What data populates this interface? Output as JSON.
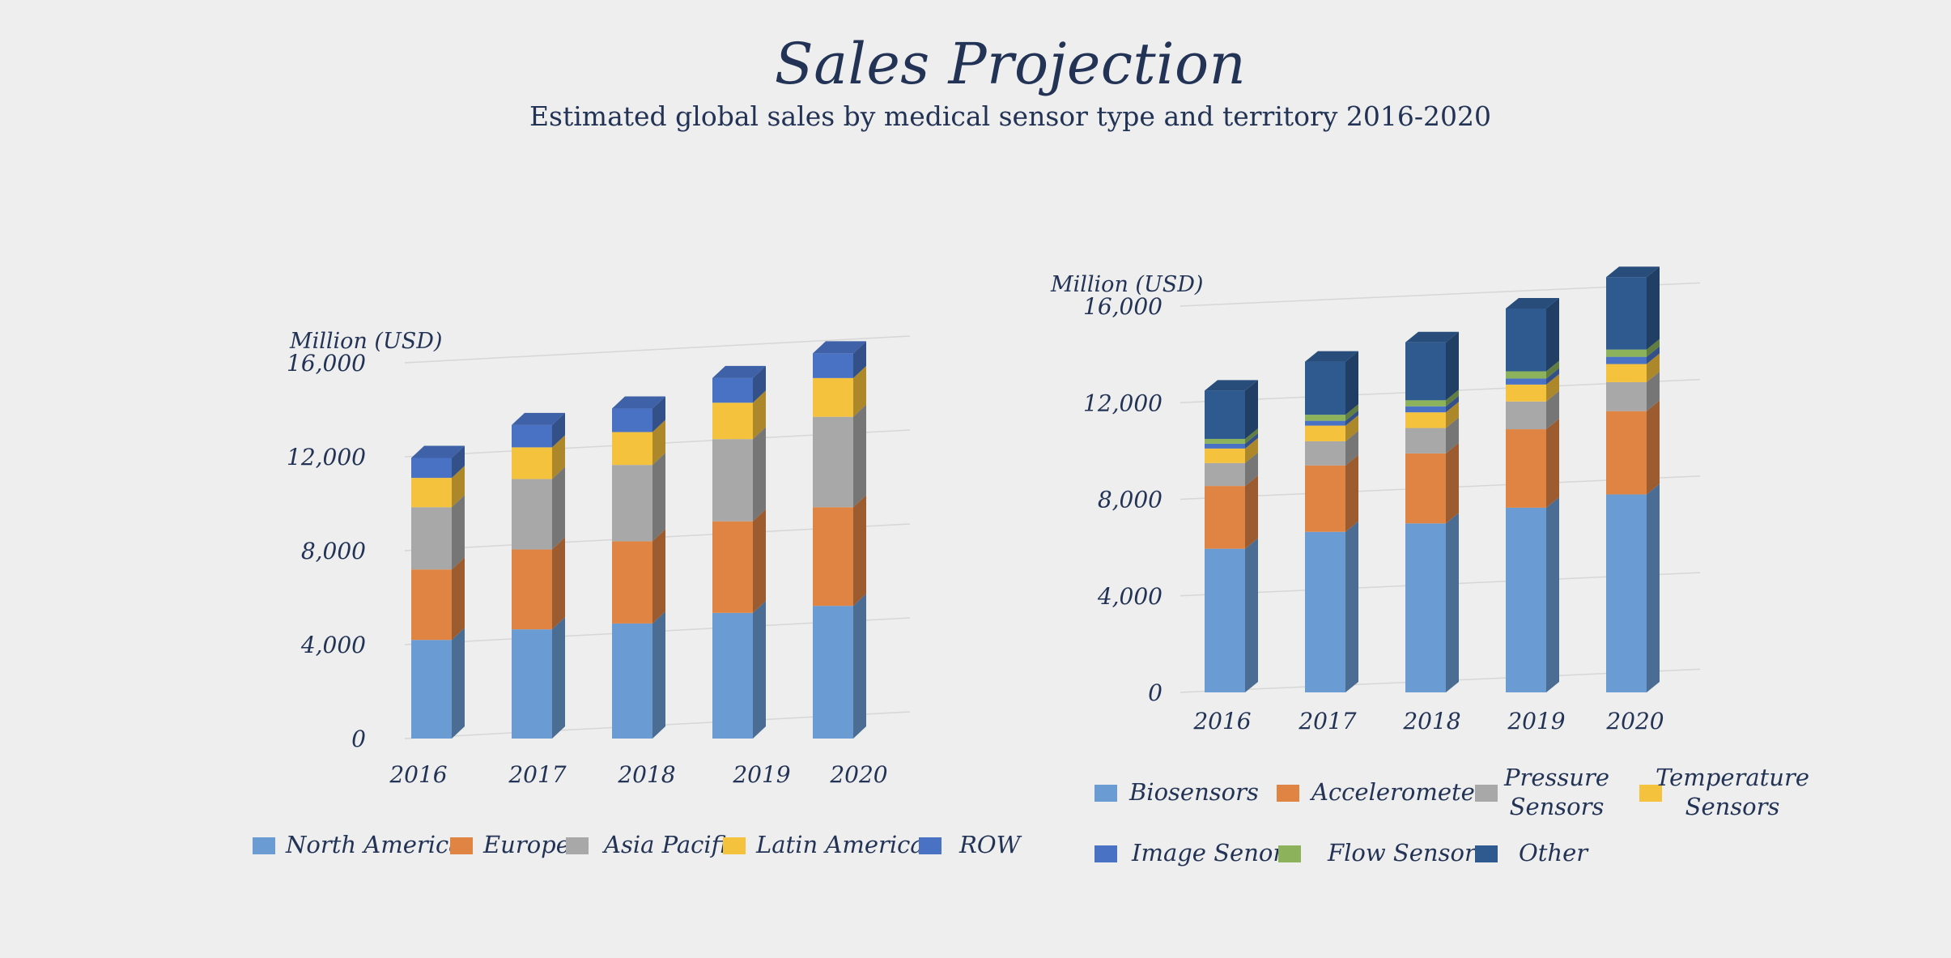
{
  "title": "Sales Projection",
  "subtitle": "Estimated global sales by medical sensor type and territory  2016-2020",
  "chart_data": [
    {
      "type": "bar",
      "stacked": true,
      "three_d": true,
      "unit_label": "Million (USD)",
      "categories": [
        "2016",
        "2017",
        "2018",
        "2019",
        "2020"
      ],
      "ylim": [
        0,
        16000
      ],
      "yticks": [
        0,
        4000,
        8000,
        12000,
        16000
      ],
      "ytick_labels": [
        "0",
        "4,000",
        "8,000",
        "12,000",
        "16,000"
      ],
      "grid": true,
      "legend_position": "bottom",
      "series": [
        {
          "name": "North America",
          "color": "#6b9bd3",
          "values": [
            4200,
            4650,
            4900,
            5350,
            5650
          ]
        },
        {
          "name": "Europe",
          "color": "#e08443",
          "values": [
            3000,
            3400,
            3500,
            3900,
            4200
          ]
        },
        {
          "name": "Asia Pacific",
          "color": "#a8a8a8",
          "values": [
            2650,
            3000,
            3250,
            3500,
            3850
          ]
        },
        {
          "name": "Latin America",
          "color": "#f5c23e",
          "values": [
            1250,
            1350,
            1400,
            1550,
            1650
          ]
        },
        {
          "name": "ROW",
          "color": "#4a72c4",
          "values": [
            850,
            950,
            1000,
            1050,
            1050
          ]
        }
      ]
    },
    {
      "type": "bar",
      "stacked": true,
      "three_d": true,
      "unit_label": "Million (USD)",
      "categories": [
        "2016",
        "2017",
        "2018",
        "2019",
        "2020"
      ],
      "ylim": [
        0,
        16000
      ],
      "yticks": [
        0,
        4000,
        8000,
        12000,
        16000
      ],
      "ytick_labels": [
        "0",
        "4,000",
        "8,000",
        "12,000",
        "16,000"
      ],
      "grid": true,
      "legend_position": "bottom",
      "series": [
        {
          "name": "Biosensors",
          "color": "#6b9bd3",
          "values": [
            5950,
            6650,
            7000,
            7650,
            8200
          ]
        },
        {
          "name": "Accelerometers",
          "color": "#e08443",
          "values": [
            2600,
            2750,
            2900,
            3250,
            3450
          ]
        },
        {
          "name": "Pressure Sensors",
          "color": "#a8a8a8",
          "values": [
            950,
            1000,
            1050,
            1150,
            1200
          ]
        },
        {
          "name": "Temperature Sensors",
          "color": "#f5c23e",
          "values": [
            600,
            650,
            650,
            700,
            750
          ]
        },
        {
          "name": "Image Senors",
          "color": "#4a72c4",
          "values": [
            200,
            200,
            250,
            250,
            300
          ]
        },
        {
          "name": "Flow Sensors",
          "color": "#8cb35c",
          "values": [
            200,
            250,
            250,
            300,
            300
          ]
        },
        {
          "name": "Other",
          "color": "#2f5a8f",
          "values": [
            2000,
            2200,
            2400,
            2600,
            3000
          ]
        }
      ]
    }
  ]
}
